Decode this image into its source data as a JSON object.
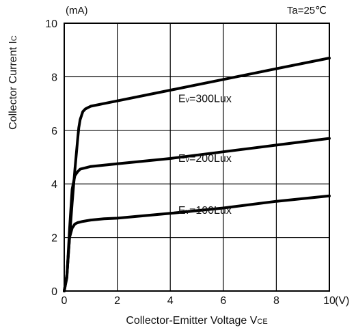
{
  "chart_data": {
    "type": "line",
    "title": "",
    "xlabel": "Collector-Emitter Voltage V",
    "xlabel_sub": "CE",
    "ylabel": "Collector Current I",
    "ylabel_sub": "C",
    "x_unit": "(V)",
    "y_unit": "(mA)",
    "condition": "Ta=25℃",
    "xlim": [
      0,
      10
    ],
    "ylim": [
      0,
      10
    ],
    "x_ticks": [
      "0",
      "2",
      "4",
      "6",
      "8",
      "10"
    ],
    "y_ticks": [
      "0",
      "2",
      "4",
      "6",
      "8",
      "10"
    ],
    "grid": true,
    "series": [
      {
        "name": "Ev=300Lux",
        "label_main": "E",
        "label_sub": "v",
        "label_rest": "=300Lux",
        "x": [
          0,
          0.1,
          0.2,
          0.3,
          0.4,
          0.5,
          0.55,
          0.6,
          0.7,
          0.8,
          1.0,
          1.5,
          2,
          4,
          6,
          8,
          10
        ],
        "y": [
          0,
          0.6,
          2.0,
          3.3,
          4.5,
          5.6,
          6.1,
          6.4,
          6.7,
          6.8,
          6.9,
          7.0,
          7.1,
          7.5,
          7.9,
          8.3,
          8.7
        ]
      },
      {
        "name": "Ev=200Lux",
        "label_main": "E",
        "label_sub": "v",
        "label_rest": "=200Lux",
        "x": [
          0,
          0.1,
          0.2,
          0.3,
          0.4,
          0.5,
          0.6,
          0.8,
          1.0,
          1.5,
          2,
          4,
          6,
          8,
          10
        ],
        "y": [
          0,
          0.5,
          2.3,
          3.8,
          4.3,
          4.45,
          4.55,
          4.6,
          4.65,
          4.7,
          4.75,
          4.95,
          5.2,
          5.45,
          5.7
        ]
      },
      {
        "name": "Ev=100Lux",
        "label_main": "E",
        "label_sub": "v",
        "label_rest": "=100Lux",
        "x": [
          0,
          0.1,
          0.2,
          0.3,
          0.4,
          0.5,
          0.7,
          1.0,
          1.5,
          2,
          4,
          6,
          8,
          10
        ],
        "y": [
          0,
          0.6,
          2.0,
          2.35,
          2.5,
          2.55,
          2.6,
          2.65,
          2.7,
          2.72,
          2.9,
          3.1,
          3.35,
          3.55
        ]
      }
    ]
  }
}
